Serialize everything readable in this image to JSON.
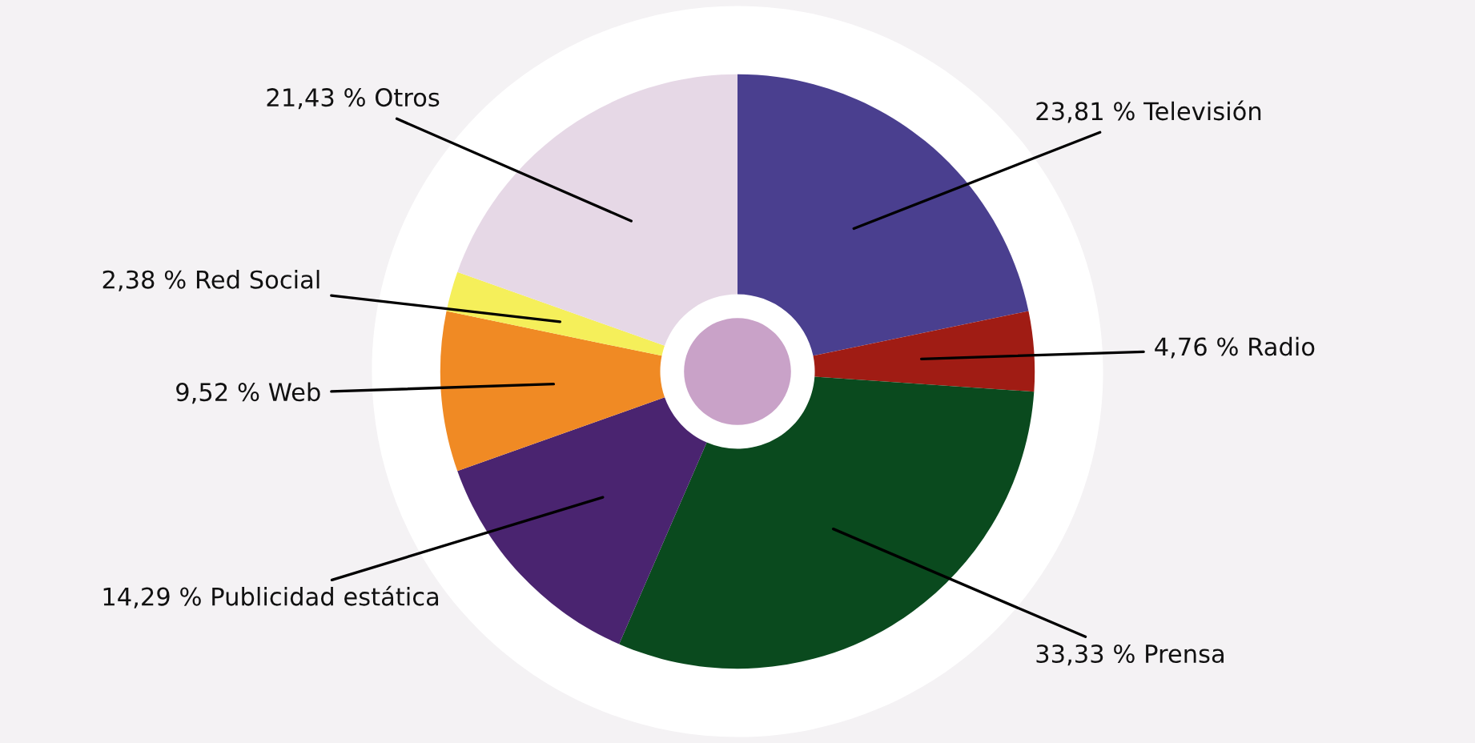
{
  "chart_data": {
    "type": "donut",
    "categories": [
      "Televisión",
      "Radio",
      "Prensa",
      "Publicidad estática",
      "Web",
      "Red Social",
      "Otros"
    ],
    "values": [
      23.81,
      4.76,
      33.33,
      14.29,
      9.52,
      2.38,
      21.43
    ],
    "value_labels": [
      "23,81 %",
      "4,76 %",
      "33,33 %",
      "14,29 %",
      "9,52 %",
      "2,38 %",
      "21,43 %"
    ],
    "colors": [
      "#4a3f8f",
      "#a01c14",
      "#0a4a1e",
      "#4a2470",
      "#f08a24",
      "#f5ef5a",
      "#e6d8e6"
    ],
    "legend": false
  }
}
